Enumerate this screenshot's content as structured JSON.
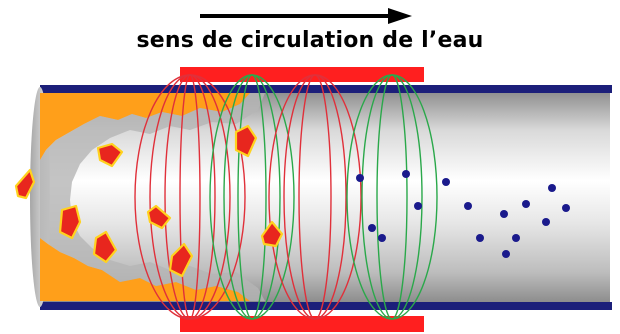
{
  "caption": "sens de circulation de l’eau",
  "colors": {
    "pipe_border": "#1c1f7a",
    "pipe_light": "#f4f4f4",
    "pipe_shadow": "#9a9a9a",
    "scale": "#ff9f1a",
    "clamp": "#ff1f1f",
    "coil_red": "#e0303a",
    "coil_green": "#2aa84a",
    "crystal_red": "#e8261e",
    "crystal_yellow": "#ffd21f",
    "particle": "#1a1a8c"
  },
  "icons": [
    "arrow-right-icon"
  ]
}
